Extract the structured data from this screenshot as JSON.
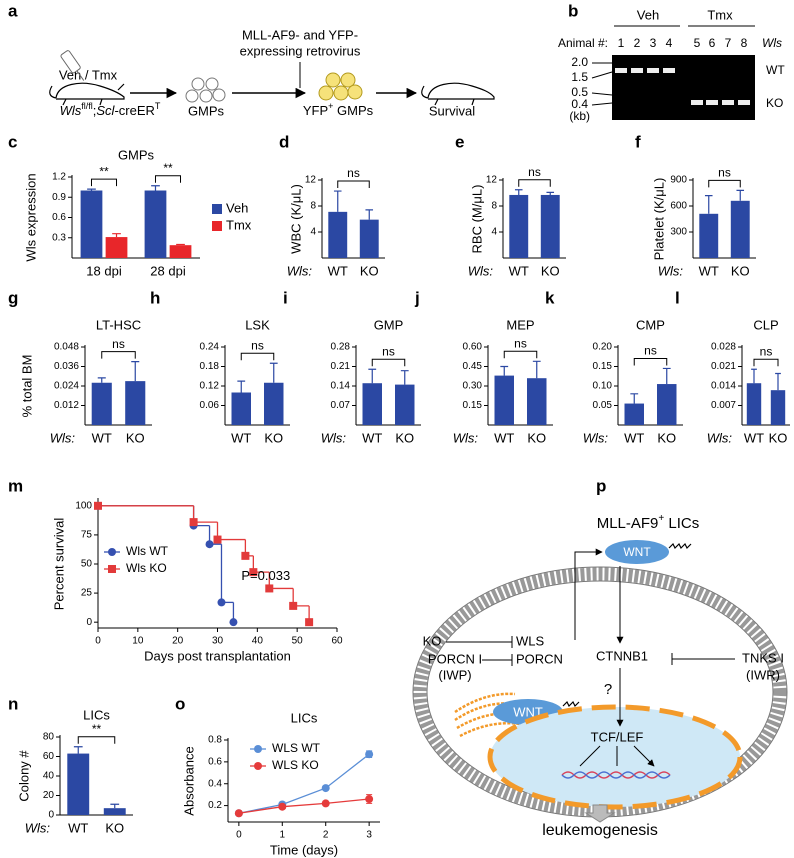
{
  "panel_labels": [
    "a",
    "b",
    "c",
    "d",
    "e",
    "f",
    "g",
    "h",
    "i",
    "j",
    "k",
    "l",
    "m",
    "n",
    "o",
    "p"
  ],
  "schematic": {
    "treatment": "Veh / Tmx",
    "genotype": [
      "Wls",
      "fl/fl",
      ";",
      "Scl",
      "-creER",
      "T"
    ],
    "virus": [
      "MLL-AF9- and YFP-",
      "expressing retrovirus"
    ],
    "cells": "GMPs",
    "infected": [
      "YFP",
      "+",
      " GMPs"
    ],
    "outcome": "Survival"
  },
  "gel": {
    "groups": [
      "Veh",
      "Tmx"
    ],
    "animal_label": "Animal #:",
    "lanes": [
      "1",
      "2",
      "3",
      "4",
      "5",
      "6",
      "7",
      "8"
    ],
    "gene_label": "Wls",
    "ladder": [
      "2.0",
      "1.5",
      "0.5",
      "0.4"
    ],
    "unit": "(kb)",
    "bands": [
      "WT",
      "KO"
    ]
  },
  "diagram": {
    "title": [
      "MLL-AF9",
      "+",
      " LICs"
    ],
    "wnt": "WNT",
    "ko": "KO",
    "wls": "WLS",
    "porcn_i": "PORCN I",
    "porcn": "PORCN",
    "iwp": "(IWP)",
    "ctnnb1": "CTNNB1",
    "tnks_i": "TNKS I",
    "iwr": "(IWR)",
    "wnt_inner": "WNT",
    "question": "?",
    "tcf": "TCF/LEF",
    "outcome": "leukemogenesis"
  },
  "chart_data": [
    {
      "type": "bar",
      "title": "GMPs",
      "ylabel": "Wls expression",
      "categories": [
        "18 dpi",
        "28 dpi"
      ],
      "series": [
        {
          "name": "Veh",
          "color": "#2b48a3",
          "values": [
            1.0,
            1.0
          ],
          "errors": [
            0.02,
            0.07
          ]
        },
        {
          "name": "Tmx",
          "color": "#e8262a",
          "values": [
            0.31,
            0.19
          ],
          "errors": [
            0.05,
            0.01
          ]
        }
      ],
      "annotations": [
        "**",
        "**"
      ],
      "ylim": [
        0,
        1.2
      ],
      "yticks": [
        0.3,
        0.6,
        0.9,
        1.2
      ],
      "legend": "right"
    },
    {
      "type": "bar",
      "ylabel": "WBC (K/μL)",
      "x_prefix": "Wls:",
      "categories": [
        "WT",
        "KO"
      ],
      "values": [
        7.1,
        5.9
      ],
      "errors": [
        3.2,
        1.5
      ],
      "color": "#2b48a3",
      "annotation": "ns",
      "ylim": [
        0,
        12
      ],
      "yticks": [
        4,
        8,
        12
      ]
    },
    {
      "type": "bar",
      "ylabel": "RBC (M/μL)",
      "x_prefix": "Wls:",
      "categories": [
        "WT",
        "KO"
      ],
      "values": [
        9.7,
        9.7
      ],
      "errors": [
        0.8,
        0.4
      ],
      "color": "#2b48a3",
      "annotation": "ns",
      "ylim": [
        0,
        12
      ],
      "yticks": [
        4,
        8,
        12
      ]
    },
    {
      "type": "bar",
      "ylabel": "Platelet (K/μL)",
      "x_prefix": "Wls:",
      "categories": [
        "WT",
        "KO"
      ],
      "values": [
        510,
        660
      ],
      "errors": [
        210,
        120
      ],
      "color": "#2b48a3",
      "annotation": "ns",
      "ylim": [
        0,
        900
      ],
      "yticks": [
        300,
        600,
        900
      ]
    },
    {
      "type": "bar",
      "title": "LT-HSC",
      "ylabel": "% total BM",
      "x_prefix": "Wls:",
      "categories": [
        "WT",
        "KO"
      ],
      "values": [
        0.026,
        0.027
      ],
      "errors": [
        0.003,
        0.012
      ],
      "color": "#2b48a3",
      "annotation": "ns",
      "ylim": [
        0,
        0.048
      ],
      "yticks": [
        0.012,
        0.024,
        0.036,
        0.048
      ]
    },
    {
      "type": "bar",
      "title": "LSK",
      "categories": [
        "WT",
        "KO"
      ],
      "values": [
        0.1,
        0.13
      ],
      "errors": [
        0.035,
        0.06
      ],
      "color": "#2b48a3",
      "annotation": "ns",
      "ylim": [
        0,
        0.24
      ],
      "yticks": [
        0.06,
        0.12,
        0.18,
        0.24
      ]
    },
    {
      "type": "bar",
      "title": "GMP",
      "x_prefix": "Wls:",
      "categories": [
        "WT",
        "KO"
      ],
      "values": [
        0.15,
        0.145
      ],
      "errors": [
        0.05,
        0.05
      ],
      "color": "#2b48a3",
      "annotation": "ns",
      "ylim": [
        0,
        0.28
      ],
      "yticks": [
        0.07,
        0.14,
        0.21,
        0.28
      ]
    },
    {
      "type": "bar",
      "title": "MEP",
      "x_prefix": "Wls:",
      "categories": [
        "WT",
        "KO"
      ],
      "values": [
        0.38,
        0.36
      ],
      "errors": [
        0.07,
        0.13
      ],
      "color": "#2b48a3",
      "annotation": "ns",
      "ylim": [
        0,
        0.6
      ],
      "yticks": [
        0.15,
        {
          "value": 0.3,
          "label": "0.30"
        },
        0.45,
        {
          "value": 0.6,
          "label": "0.60"
        }
      ]
    },
    {
      "type": "bar",
      "title": "CMP",
      "x_prefix": "Wls:",
      "categories": [
        "WT",
        "KO"
      ],
      "values": [
        0.055,
        0.105
      ],
      "errors": [
        0.025,
        0.04
      ],
      "color": "#2b48a3",
      "annotation": "ns",
      "ylim": [
        0,
        0.2
      ],
      "yticks": [
        0.05,
        {
          "value": 0.1,
          "label": "0.10"
        },
        0.15,
        {
          "value": 0.2,
          "label": "0.20"
        }
      ]
    },
    {
      "type": "bar",
      "title": "CLP",
      "x_prefix": "Wls:",
      "categories": [
        "WT",
        "KO"
      ],
      "values": [
        0.015,
        0.0125
      ],
      "errors": [
        0.005,
        0.006
      ],
      "color": "#2b48a3",
      "annotation": "ns",
      "ylim": [
        0,
        0.028
      ],
      "yticks": [
        0.007,
        0.014,
        0.021,
        0.028
      ]
    },
    {
      "type": "line",
      "step": true,
      "xlabel": "Days post transplantation",
      "ylabel": "Percent survival",
      "annotation": "P=0.033",
      "series": [
        {
          "name": "Wls WT",
          "color": "#3550b0",
          "marker": "circle",
          "x": [
            0,
            24,
            28,
            31,
            34
          ],
          "values": [
            100,
            83,
            67,
            17,
            0
          ]
        },
        {
          "name": "Wls KO",
          "color": "#e23a3a",
          "marker": "square",
          "x": [
            0,
            24,
            30,
            37,
            39,
            43,
            49,
            53
          ],
          "values": [
            100,
            86,
            71,
            57,
            43,
            29,
            14,
            0
          ]
        }
      ],
      "xlim": [
        0,
        60
      ],
      "xticks": [
        0,
        10,
        20,
        30,
        40,
        50,
        60
      ],
      "ylim": [
        -5,
        105
      ],
      "yticks": [
        0,
        25,
        50,
        75,
        100
      ],
      "legend": "center left"
    },
    {
      "type": "bar",
      "title": "LICs",
      "ylabel": "Colony #",
      "x_prefix": "Wls:",
      "categories": [
        "WT",
        "KO"
      ],
      "values": [
        63,
        7
      ],
      "errors": [
        7,
        4
      ],
      "color": "#2b48a3",
      "annotation": "**",
      "ylim": [
        0,
        80
      ],
      "yticks": [
        0,
        20,
        40,
        60,
        80
      ]
    },
    {
      "type": "line",
      "title": "LICs",
      "xlabel": "Time (days)",
      "ylabel": "Absorbance",
      "x": [
        0,
        1,
        2,
        3
      ],
      "series": [
        {
          "name": "WLS WT",
          "color": "#5a8ed6",
          "marker": "circle",
          "values": [
            0.13,
            0.21,
            0.36,
            0.67
          ],
          "errors": [
            0.01,
            0.02,
            0.01,
            0.03
          ]
        },
        {
          "name": "WLS KO",
          "color": "#e53b3b",
          "marker": "circle",
          "values": [
            0.13,
            0.19,
            0.22,
            0.26
          ],
          "errors": [
            0.01,
            0.01,
            0.01,
            0.04
          ]
        }
      ],
      "xlim": [
        -0.25,
        3.25
      ],
      "xticks": [
        0,
        1,
        2,
        3
      ],
      "ylim": [
        0.05,
        0.8
      ],
      "yticks": [
        0.2,
        0.4,
        0.6,
        0.8
      ],
      "legend": "upper left"
    }
  ]
}
